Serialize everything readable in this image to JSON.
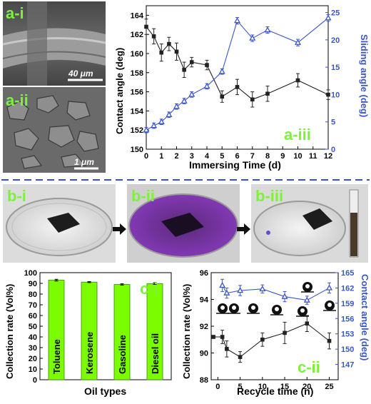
{
  "panels": {
    "a_i": {
      "label": "a-i",
      "scale_bar": "40 μm"
    },
    "a_ii": {
      "label": "a-ii",
      "scale_bar": "1 μm"
    },
    "b_i": {
      "label": "b-i"
    },
    "b_ii": {
      "label": "b-ii"
    },
    "b_iii": {
      "label": "b-iii"
    }
  },
  "colors": {
    "black_series": "#222222",
    "blue_series": "#3A56C8",
    "bar_fill": "#7CFC00",
    "label_green": "#7CF23A",
    "divider": "#3A4FD0"
  },
  "chart_data": [
    {
      "id": "a-iii",
      "type": "line",
      "panel_label": "a-iii",
      "xlabel": "Immersing Time (d)",
      "ylabel": "Contact angle (deg)",
      "ylabel_right": "Sliding angle (deg)",
      "xlim": [
        0,
        12
      ],
      "xticks": [
        0,
        1,
        2,
        3,
        4,
        5,
        6,
        7,
        8,
        9,
        10,
        11,
        12
      ],
      "ylim": [
        150,
        165
      ],
      "yticks": [
        150,
        152,
        154,
        156,
        158,
        160,
        162,
        164
      ],
      "ylim_right": [
        0,
        26.25
      ],
      "yticks_right": [
        0,
        5,
        10,
        15,
        20,
        25
      ],
      "series": [
        {
          "axis": "left",
          "marker": "square",
          "x": [
            0,
            0.5,
            1,
            1.5,
            2,
            2.5,
            3,
            4,
            5,
            6,
            7,
            8,
            10,
            12
          ],
          "y": [
            162.8,
            161.8,
            160.1,
            161.0,
            160.2,
            158.3,
            159.1,
            158.8,
            155.5,
            156.5,
            155.2,
            155.8,
            157.2,
            155.7
          ],
          "err": [
            0.8,
            0.8,
            0.9,
            0.7,
            0.9,
            0.8,
            0.5,
            0.5,
            0.6,
            0.8,
            0.8,
            0.8,
            0.7,
            0.5
          ]
        },
        {
          "axis": "right",
          "marker": "triangle",
          "x": [
            0,
            0.5,
            1,
            1.5,
            2,
            2.5,
            3,
            4,
            5,
            6,
            7,
            8,
            10,
            12
          ],
          "y": [
            3.5,
            4.3,
            5.0,
            6.3,
            7.8,
            8.8,
            10.0,
            11.5,
            14.2,
            23.5,
            20.3,
            21.8,
            19.5,
            24.0
          ],
          "err": [
            0.5,
            0.5,
            0.5,
            0.5,
            0.5,
            0.5,
            0.5,
            0.5,
            0.5,
            0.6,
            0.6,
            0.6,
            0.6,
            0.6
          ]
        }
      ]
    },
    {
      "id": "c-i",
      "type": "bar",
      "panel_label": "c-i",
      "xlabel": "Oil types",
      "ylabel": "Collection rate (Vol%)",
      "categories": [
        "Toluene",
        "Kerosene",
        "Gasoline",
        "Diesel oil"
      ],
      "values": [
        93.0,
        91.2,
        89.0,
        89.8
      ],
      "err": [
        0.8,
        0.5,
        0.6,
        0.8
      ],
      "ylim": [
        0,
        100
      ],
      "yticks": [
        0,
        10,
        20,
        30,
        40,
        50,
        60,
        70,
        80,
        90,
        100
      ]
    },
    {
      "id": "c-ii",
      "type": "line",
      "panel_label": "c-ii",
      "xlabel": "Recycle time (n)",
      "ylabel": "Collection rate (Vol%)",
      "ylabel_right": "Contact angle (deg)",
      "xlim": [
        -1.5,
        27
      ],
      "xticks": [
        0,
        5,
        10,
        15,
        20,
        25
      ],
      "ylim": [
        88,
        96
      ],
      "yticks": [
        88,
        90,
        92,
        94,
        96
      ],
      "ylim_right": [
        144,
        165
      ],
      "yticks_right": [
        147,
        150,
        153,
        156,
        159,
        162,
        165
      ],
      "series": [
        {
          "axis": "left",
          "marker": "square",
          "x": [
            -1,
            1,
            2,
            5,
            10,
            15,
            20,
            25
          ],
          "y": [
            91.2,
            91.2,
            90.3,
            89.7,
            91.0,
            91.5,
            92.2,
            90.9
          ],
          "err": [
            0,
            0.5,
            0.6,
            0.4,
            0.5,
            0.8,
            0.6,
            0.6
          ]
        },
        {
          "axis": "right",
          "marker": "triangle",
          "x": [
            1,
            2,
            5,
            10,
            15,
            20,
            25
          ],
          "y": [
            162.5,
            161.0,
            161.5,
            161.8,
            160.3,
            159.6,
            162.0
          ],
          "err": [
            1.2,
            1.0,
            1.0,
            0.8,
            1.0,
            0.8,
            1.0
          ]
        }
      ]
    }
  ]
}
